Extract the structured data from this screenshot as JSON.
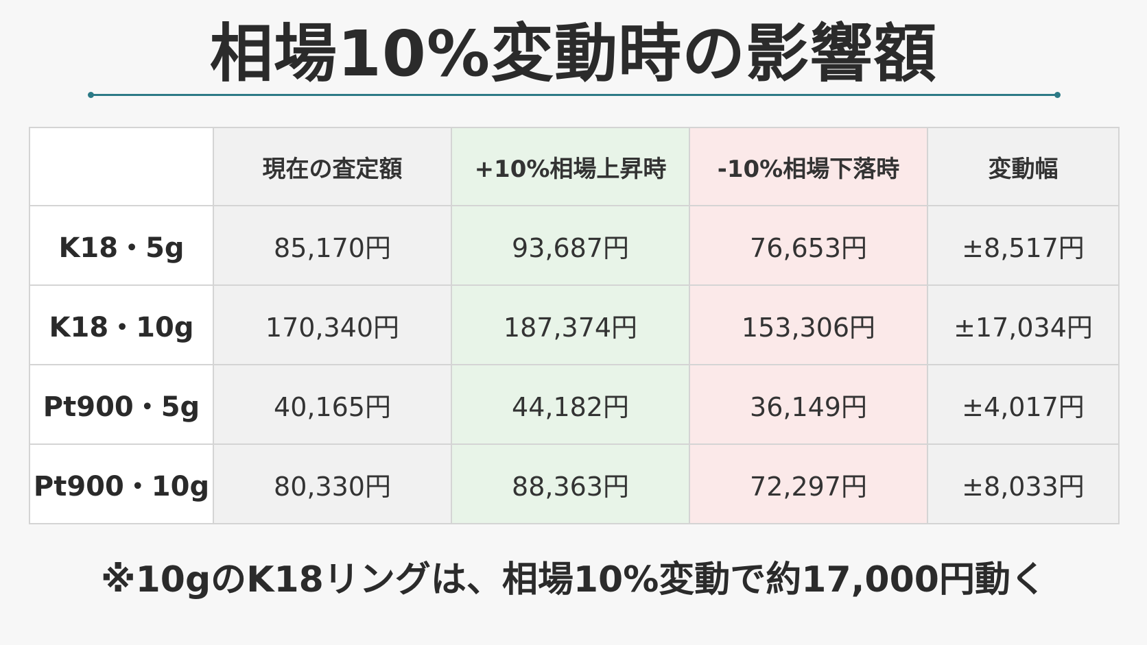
{
  "title": "相場10%変動時の影響額",
  "table": {
    "headers": [
      "",
      "現在の査定額",
      "+10%相場上昇時",
      "-10%相場下落時",
      "変動幅"
    ],
    "rows": [
      {
        "label": "K18・5g",
        "current": "85,170円",
        "up": "93,687円",
        "down": "76,653円",
        "range": "±8,517円"
      },
      {
        "label": "K18・10g",
        "current": "170,340円",
        "up": "187,374円",
        "down": "153,306円",
        "range": "±17,034円"
      },
      {
        "label": "Pt900・5g",
        "current": "40,165円",
        "up": "44,182円",
        "down": "36,149円",
        "range": "±4,017円"
      },
      {
        "label": "Pt900・10g",
        "current": "80,330円",
        "up": "88,363円",
        "down": "72,297円",
        "range": "±8,033円"
      }
    ]
  },
  "note": "※10gのK18リングは、相場10%変動で約17,000円動く",
  "colors": {
    "accent_line": "#2c7a86",
    "up_column": "#e8f4e8",
    "down_column": "#fbe9e9",
    "neutral_column": "#f1f1f1"
  }
}
